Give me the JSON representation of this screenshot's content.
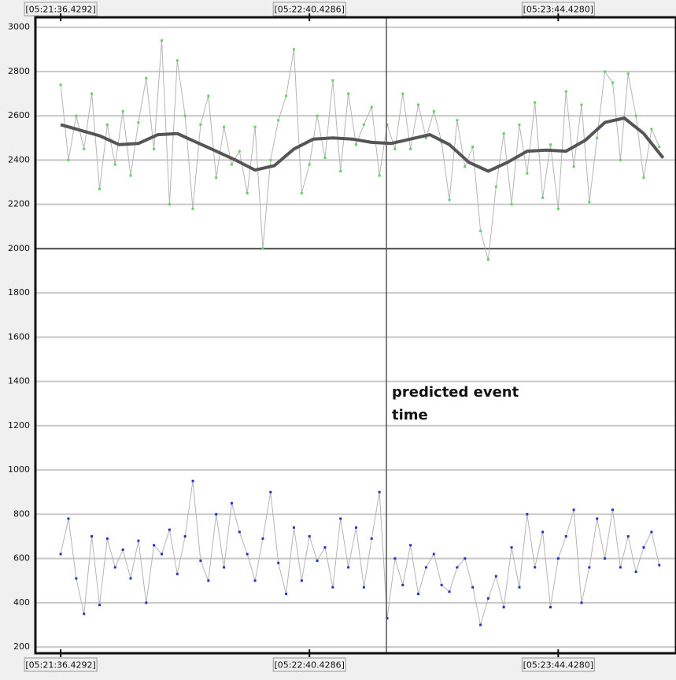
{
  "chart_data": {
    "type": "line",
    "xlim": [
      -6.5,
      158.3
    ],
    "xticks": [
      {
        "value": 0,
        "label": "[05:21:36.4292]"
      },
      {
        "value": 63.9994,
        "label": "[05:22:40.4286]"
      },
      {
        "value": 127.9988,
        "label": "[05:23:44.4280]"
      }
    ],
    "ylim": [
      172,
      3045
    ],
    "yticks": [
      200,
      400,
      600,
      800,
      1000,
      1200,
      1400,
      1600,
      1800,
      2000,
      2200,
      2400,
      2600,
      2800,
      3000
    ],
    "grid": true,
    "divider": 2000,
    "annotation": {
      "text": "predicted event time",
      "x": 83.8
    },
    "series": [
      {
        "color": "#5fd35f",
        "line_color": "#b5b5b5",
        "x": [
          0,
          2,
          4,
          6,
          8,
          10,
          12,
          14,
          16,
          18,
          20,
          22,
          24,
          26,
          28,
          30,
          32,
          34,
          36,
          38,
          40,
          42,
          44,
          46,
          48,
          50,
          52,
          54,
          56,
          58,
          60,
          62,
          64,
          66,
          68,
          70,
          72,
          74,
          76,
          78,
          80,
          82,
          84,
          86,
          88,
          90,
          92,
          94,
          96,
          98,
          100,
          102,
          104,
          106,
          108,
          110,
          112,
          114,
          116,
          118,
          120,
          122,
          124,
          126,
          128,
          130,
          132,
          134,
          136,
          138,
          140,
          142,
          144,
          146,
          148,
          150,
          152,
          154
        ],
        "values": [
          2740,
          2400,
          2600,
          2450,
          2700,
          2270,
          2560,
          2380,
          2620,
          2330,
          2570,
          2770,
          2450,
          2940,
          2200,
          2850,
          2600,
          2180,
          2560,
          2690,
          2320,
          2550,
          2380,
          2440,
          2250,
          2550,
          2000,
          2400,
          2580,
          2690,
          2900,
          2250,
          2380,
          2600,
          2410,
          2760,
          2350,
          2700,
          2470,
          2560,
          2640,
          2330,
          2560,
          2450,
          2700,
          2450,
          2650,
          2500,
          2620,
          2480,
          2220,
          2580,
          2370,
          2460,
          2080,
          1950,
          2280,
          2520,
          2200,
          2560,
          2340,
          2660,
          2230,
          2470,
          2180,
          2710,
          2370,
          2650,
          2210,
          2500,
          2800,
          2750,
          2400,
          2790,
          2600,
          2320,
          2540,
          2460
        ]
      },
      {
        "color": "#555555",
        "smooth": true,
        "x": [
          0,
          5,
          10,
          15,
          20,
          25,
          30,
          35,
          40,
          45,
          50,
          55,
          60,
          65,
          70,
          75,
          80,
          85,
          90,
          95,
          100,
          105,
          110,
          115,
          120,
          125,
          130,
          135,
          140,
          145,
          150,
          155
        ],
        "values": [
          2560,
          2535,
          2510,
          2470,
          2475,
          2515,
          2520,
          2480,
          2440,
          2400,
          2355,
          2375,
          2450,
          2495,
          2500,
          2495,
          2480,
          2475,
          2495,
          2515,
          2470,
          2390,
          2350,
          2390,
          2440,
          2445,
          2440,
          2490,
          2570,
          2590,
          2520,
          2410
        ]
      },
      {
        "color": "#2233cc",
        "line_color": "#b5b5b5",
        "x": [
          0,
          2,
          4,
          6,
          8,
          10,
          12,
          14,
          16,
          18,
          20,
          22,
          24,
          26,
          28,
          30,
          32,
          34,
          36,
          38,
          40,
          42,
          44,
          46,
          48,
          50,
          52,
          54,
          56,
          58,
          60,
          62,
          64,
          66,
          68,
          70,
          72,
          74,
          76,
          78,
          80,
          82,
          84,
          86,
          88,
          90,
          92,
          94,
          96,
          98,
          100,
          102,
          104,
          106,
          108,
          110,
          112,
          114,
          116,
          118,
          120,
          122,
          124,
          126,
          128,
          130,
          132,
          134,
          136,
          138,
          140,
          142,
          144,
          146,
          148,
          150,
          152,
          154
        ],
        "values": [
          620,
          780,
          510,
          350,
          700,
          390,
          690,
          560,
          640,
          510,
          680,
          400,
          660,
          620,
          730,
          530,
          700,
          950,
          590,
          500,
          800,
          560,
          850,
          720,
          620,
          500,
          690,
          900,
          580,
          440,
          740,
          500,
          700,
          590,
          650,
          470,
          780,
          560,
          740,
          470,
          690,
          900,
          330,
          600,
          480,
          660,
          440,
          560,
          620,
          480,
          450,
          560,
          600,
          470,
          300,
          420,
          520,
          380,
          650,
          470,
          800,
          560,
          720,
          380,
          600,
          700,
          820,
          400,
          560,
          780,
          600,
          820,
          560,
          700,
          540,
          650,
          720,
          570
        ]
      }
    ]
  }
}
